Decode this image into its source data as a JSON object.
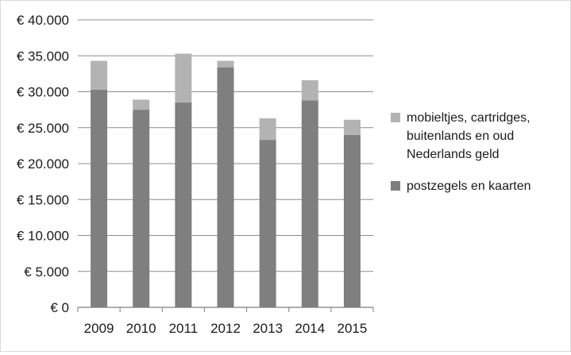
{
  "chart_data": {
    "type": "bar",
    "stacked": true,
    "categories": [
      "2009",
      "2010",
      "2011",
      "2012",
      "2013",
      "2014",
      "2015"
    ],
    "series": [
      {
        "name": "postzegels en kaarten",
        "color": "#7f7f7f",
        "values": [
          30300,
          27500,
          28500,
          33400,
          23300,
          28800,
          24000
        ]
      },
      {
        "name": "mobieltjes, cartridges, buitenlands en oud Nederlands geld",
        "legend_lines": [
          "mobieltjes, cartridges,",
          "buitenlands en oud",
          "Nederlands geld"
        ],
        "color": "#b3b3b3",
        "values": [
          4000,
          1400,
          6800,
          900,
          3000,
          2800,
          2100
        ]
      }
    ],
    "ylim": [
      0,
      40000
    ],
    "yticks": [
      {
        "value": 0,
        "label": "€ 0"
      },
      {
        "value": 5000,
        "label": "€ 5.000"
      },
      {
        "value": 10000,
        "label": "€ 10.000"
      },
      {
        "value": 15000,
        "label": "€ 15.000"
      },
      {
        "value": 20000,
        "label": "€ 20.000"
      },
      {
        "value": 25000,
        "label": "€ 25.000"
      },
      {
        "value": 30000,
        "label": "€ 30.000"
      },
      {
        "value": 35000,
        "label": "€ 35.000"
      },
      {
        "value": 40000,
        "label": "€ 40.000"
      }
    ],
    "grid": true,
    "legend_position": "right",
    "title": "",
    "xlabel": "",
    "ylabel": ""
  }
}
